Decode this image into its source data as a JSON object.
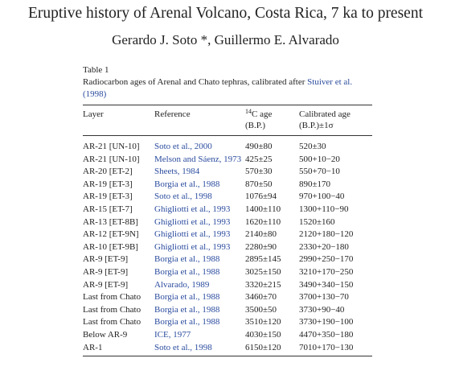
{
  "header": {
    "title": "Eruptive history of Arenal Volcano, Costa Rica, 7 ka to present",
    "authors": "Gerardo J. Soto *, Guillermo E. Alvarado"
  },
  "table": {
    "label": "Table 1",
    "caption": {
      "text": "Radiocarbon ages of Arenal and Chato tephras, calibrated after ",
      "link": "Stuiver et al. (1998)"
    },
    "columns": {
      "layer": "Layer",
      "reference": "Reference",
      "c14": {
        "sup": "14",
        "main": "C age",
        "unit": "(B.P.)"
      },
      "calibrated": {
        "main": "Calibrated age",
        "unit": "(B.P.)±1σ"
      }
    },
    "rows": [
      [
        "AR-21 [UN-10]",
        "Soto et al., 2000",
        "490±80",
        "520±30"
      ],
      [
        "AR-21 [UN-10]",
        "Melson and Sáenz, 1973",
        "425±25",
        "500+10−20"
      ],
      [
        "AR-20 [ET-2]",
        "Sheets, 1984",
        "570±30",
        "550+70−10"
      ],
      [
        "AR-19 [ET-3]",
        "Borgia et al., 1988",
        "870±50",
        "890±170"
      ],
      [
        "AR-19 [ET-3]",
        "Soto et al., 1998",
        "1076±94",
        "970+100−40"
      ],
      [
        "AR-15 [ET-7]",
        "Ghigliotti et al., 1993",
        "1400±110",
        "1300+110−90"
      ],
      [
        "AR-13 [ET-8B]",
        "Ghigliotti et al., 1993",
        "1620±110",
        "1520±160"
      ],
      [
        "AR-12 [ET-9N]",
        "Ghigliotti et al., 1993",
        "2140±80",
        "2120+180−120"
      ],
      [
        "AR-10 [ET-9B]",
        "Ghigliotti et al., 1993",
        "2280±90",
        "2330+20−180"
      ],
      [
        "AR-9 [ET-9]",
        "Borgia et al., 1988",
        "2895±145",
        "2990+250−170"
      ],
      [
        "AR-9 [ET-9]",
        "Borgia et al., 1988",
        "3025±150",
        "3210+170−250"
      ],
      [
        "AR-9 [ET-9]",
        "Alvarado, 1989",
        "3320±215",
        "3490+340−150"
      ],
      [
        "Last from Chato",
        "Borgia et al., 1988",
        "3460±70",
        "3700+130−70"
      ],
      [
        "Last from Chato",
        "Borgia et al., 1988",
        "3500±50",
        "3730+90−40"
      ],
      [
        "Last from Chato",
        "Borgia et al., 1988",
        "3510±120",
        "3730+190−100"
      ],
      [
        "Below AR-9",
        "ICE, 1977",
        "4030±150",
        "4470+350−180"
      ],
      [
        "AR-1",
        "Soto et al., 1998",
        "6150±120",
        "7010+170−130"
      ]
    ]
  }
}
